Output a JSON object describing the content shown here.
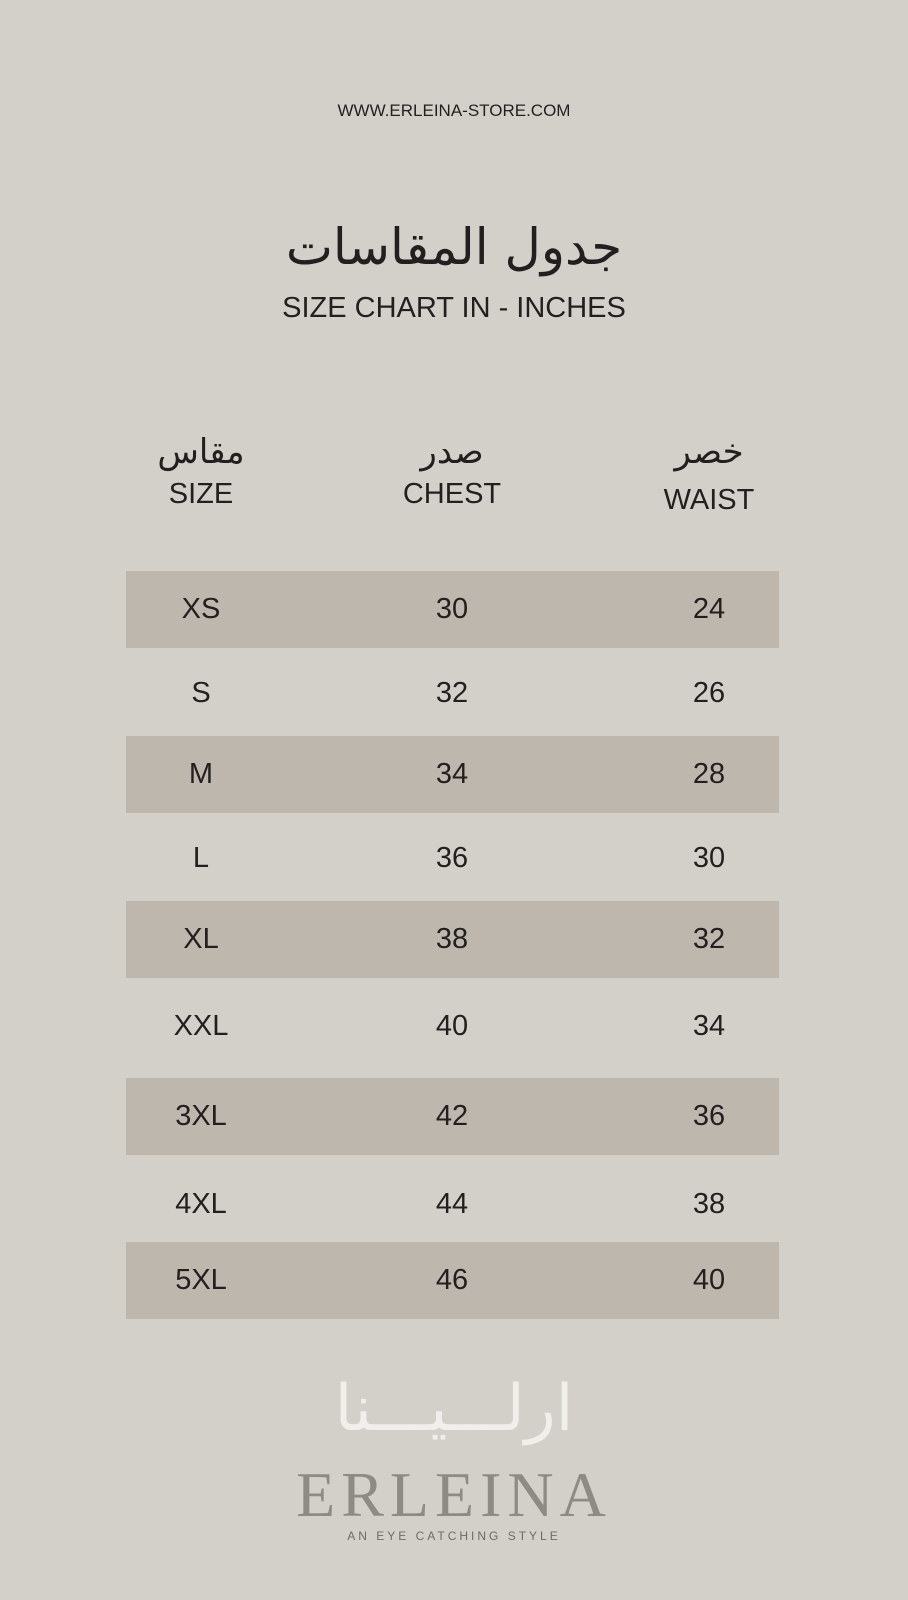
{
  "website": "WWW.ERLEINA-STORE.COM",
  "title_ar": "جدول المقاسات",
  "title_en": "SIZE CHART IN - INCHES",
  "columns": [
    {
      "ar": "مقاس",
      "en": "SIZE"
    },
    {
      "ar": "صدر",
      "en": "CHEST"
    },
    {
      "ar": "خصر",
      "en": "WAIST"
    }
  ],
  "rows": [
    [
      "XS",
      "30",
      "24"
    ],
    [
      "S",
      "32",
      "26"
    ],
    [
      "M",
      "34",
      "28"
    ],
    [
      "L",
      "36",
      "30"
    ],
    [
      "XL",
      "38",
      "32"
    ],
    [
      "XXL",
      "40",
      "34"
    ],
    [
      "3XL",
      "42",
      "36"
    ],
    [
      "4XL",
      "44",
      "38"
    ],
    [
      "5XL",
      "46",
      "40"
    ]
  ],
  "logo": {
    "ar": "ارلـــيـــنا",
    "en": "ERLEINA",
    "tagline": "AN EYE CATCHING STYLE"
  },
  "colors": {
    "background": "#d3d0ca",
    "row_shade": "#beb7ad",
    "text": "#231f20"
  }
}
